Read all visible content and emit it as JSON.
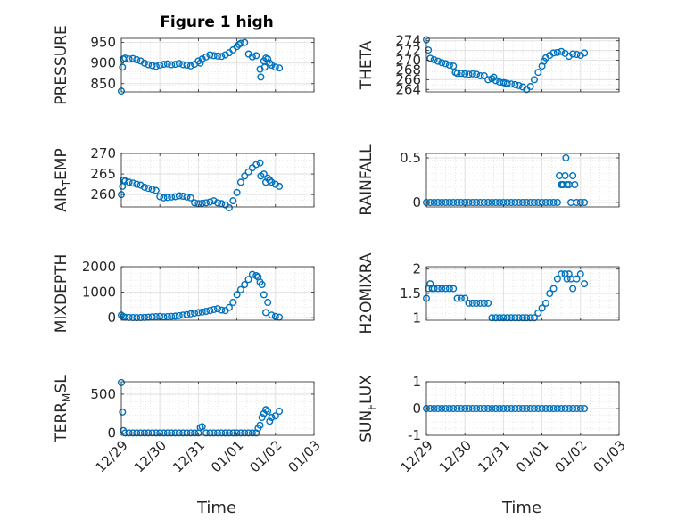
{
  "figure": {
    "title": "Figure 1 high",
    "marker_color": "#0072BD"
  },
  "chart_data": [
    {
      "type": "scatter",
      "title": "Figure 1 high",
      "ylabel": "PRESSURE",
      "xlabel": "",
      "ylim": [
        830,
        960
      ],
      "yticks": [
        850,
        900,
        950
      ],
      "ytick_labels": [
        "850",
        "900",
        "950"
      ],
      "xlim": [
        0,
        5
      ],
      "xticks": [
        0,
        1,
        2,
        3,
        4,
        5
      ],
      "xtick_labels": [],
      "grid": true,
      "marker": "open-circle",
      "series": [
        {
          "x": [
            0,
            0.03,
            0.05,
            0.1,
            0.2,
            0.3,
            0.4,
            0.5,
            0.6,
            0.7,
            0.8,
            0.9,
            1.0,
            1.1,
            1.2,
            1.3,
            1.4,
            1.5,
            1.6,
            1.7,
            1.8,
            1.9,
            2.0,
            2.05,
            2.1,
            2.2,
            2.3,
            2.4,
            2.5,
            2.6,
            2.7,
            2.8,
            2.9,
            3.0,
            3.05,
            3.1,
            3.2,
            3.3,
            3.4,
            3.5,
            3.6,
            3.62,
            3.7,
            3.72,
            3.75,
            3.8,
            3.85,
            3.9,
            4.0,
            4.1
          ],
          "y": [
            832,
            890,
            910,
            912,
            910,
            911,
            908,
            905,
            900,
            896,
            894,
            892,
            895,
            897,
            898,
            896,
            897,
            899,
            896,
            895,
            893,
            897,
            905,
            900,
            910,
            915,
            920,
            918,
            917,
            916,
            920,
            925,
            932,
            940,
            945,
            948,
            950,
            922,
            915,
            918,
            885,
            866,
            905,
            890,
            912,
            910,
            900,
            895,
            890,
            888
          ]
        }
      ]
    },
    {
      "type": "scatter",
      "ylabel": "THETA",
      "xlabel": "",
      "ylim": [
        263.5,
        274.5
      ],
      "yticks": [
        264,
        266,
        268,
        270,
        272,
        274
      ],
      "ytick_labels": [
        "264",
        "266",
        "268",
        "270",
        "272",
        "274"
      ],
      "xlim": [
        0,
        5
      ],
      "xticks": [
        0,
        1,
        2,
        3,
        4,
        5
      ],
      "xtick_labels": [],
      "grid": true,
      "marker": "open-circle",
      "series": [
        {
          "x": [
            0,
            0.05,
            0.1,
            0.2,
            0.3,
            0.4,
            0.5,
            0.6,
            0.7,
            0.75,
            0.8,
            0.9,
            1.0,
            1.1,
            1.2,
            1.3,
            1.4,
            1.5,
            1.6,
            1.7,
            1.75,
            1.8,
            1.9,
            2.0,
            2.05,
            2.1,
            2.2,
            2.3,
            2.4,
            2.5,
            2.6,
            2.7,
            2.8,
            2.9,
            3.0,
            3.05,
            3.1,
            3.2,
            3.3,
            3.4,
            3.5,
            3.6,
            3.7,
            3.8,
            3.9,
            4.0,
            4.1
          ],
          "y": [
            274.2,
            272.1,
            270.4,
            270.1,
            269.8,
            269.5,
            269.3,
            269.0,
            268.8,
            267.5,
            267.3,
            267.3,
            267.2,
            267.1,
            267.2,
            267.1,
            266.8,
            266.8,
            266.0,
            266.2,
            266.5,
            265.8,
            265.5,
            265.4,
            265.3,
            265.2,
            265.1,
            265.0,
            264.8,
            264.5,
            264.0,
            264.6,
            266.0,
            267.5,
            268.8,
            269.8,
            270.5,
            271.0,
            271.5,
            271.6,
            271.8,
            271.4,
            270.8,
            271.3,
            271.2,
            271.0,
            271.5
          ]
        }
      ]
    },
    {
      "type": "scatter",
      "ylabel": "AIR_TEMP",
      "xlabel": "",
      "ylim": [
        257,
        270
      ],
      "yticks": [
        260,
        265,
        270
      ],
      "ytick_labels": [
        "260",
        "265",
        "270"
      ],
      "xlim": [
        0,
        5
      ],
      "xticks": [
        0,
        1,
        2,
        3,
        4,
        5
      ],
      "xtick_labels": [],
      "grid": true,
      "marker": "open-circle",
      "series": [
        {
          "x": [
            0,
            0.03,
            0.05,
            0.1,
            0.2,
            0.3,
            0.4,
            0.5,
            0.6,
            0.7,
            0.8,
            0.9,
            1.0,
            1.1,
            1.2,
            1.3,
            1.4,
            1.5,
            1.6,
            1.7,
            1.8,
            1.9,
            2.0,
            2.1,
            2.2,
            2.3,
            2.4,
            2.5,
            2.6,
            2.7,
            2.8,
            2.9,
            3.0,
            3.1,
            3.2,
            3.3,
            3.4,
            3.5,
            3.6,
            3.62,
            3.7,
            3.75,
            3.8,
            3.85,
            3.9,
            4.0,
            4.1
          ],
          "y": [
            260,
            262,
            263.5,
            263.3,
            263,
            262.8,
            262.5,
            262.3,
            261.8,
            261.5,
            261.3,
            261.0,
            259.5,
            259.2,
            259.3,
            259.4,
            259.5,
            259.7,
            259.6,
            259.4,
            259.2,
            258.0,
            257.8,
            257.9,
            258.0,
            258.2,
            258.5,
            258.0,
            257.8,
            257.5,
            256.8,
            258.5,
            260.5,
            263.0,
            264.5,
            265.5,
            266.5,
            267.3,
            267.7,
            264.5,
            265.0,
            263.0,
            264.0,
            263.5,
            263.0,
            262.5,
            262.0
          ]
        }
      ]
    },
    {
      "type": "scatter",
      "ylabel": "RAINFALL",
      "xlabel": "",
      "ylim": [
        -0.05,
        0.55
      ],
      "yticks": [
        0,
        0.5
      ],
      "ytick_labels": [
        "0",
        "0.5"
      ],
      "xlim": [
        0,
        5
      ],
      "xticks": [
        0,
        1,
        2,
        3,
        4,
        5
      ],
      "xtick_labels": [],
      "grid": true,
      "marker": "open-circle",
      "series": [
        {
          "x": [
            0,
            0.1,
            0.2,
            0.3,
            0.4,
            0.5,
            0.6,
            0.7,
            0.8,
            0.9,
            1.0,
            1.1,
            1.2,
            1.3,
            1.4,
            1.5,
            1.6,
            1.7,
            1.8,
            1.9,
            2.0,
            2.1,
            2.2,
            2.3,
            2.4,
            2.5,
            2.6,
            2.7,
            2.8,
            2.9,
            3.0,
            3.1,
            3.2,
            3.3,
            3.4,
            3.45,
            3.5,
            3.52,
            3.55,
            3.6,
            3.62,
            3.65,
            3.7,
            3.75,
            3.8,
            3.85,
            3.9,
            4.0,
            4.1
          ],
          "y": [
            0,
            0,
            0,
            0,
            0,
            0,
            0,
            0,
            0,
            0,
            0,
            0,
            0,
            0,
            0,
            0,
            0,
            0,
            0,
            0,
            0,
            0,
            0,
            0,
            0,
            0,
            0,
            0,
            0,
            0,
            0,
            0,
            0,
            0,
            0,
            0.3,
            0.2,
            0.2,
            0.2,
            0.3,
            0.5,
            0.2,
            0.2,
            0,
            0.3,
            0.2,
            0,
            0,
            0
          ]
        }
      ]
    },
    {
      "type": "scatter",
      "ylabel": "MIXDEPTH",
      "xlabel": "",
      "ylim": [
        -100,
        2000
      ],
      "yticks": [
        0,
        1000,
        2000
      ],
      "ytick_labels": [
        "0",
        "1000",
        "2000"
      ],
      "xlim": [
        0,
        5
      ],
      "xticks": [
        0,
        1,
        2,
        3,
        4,
        5
      ],
      "xtick_labels": [],
      "grid": true,
      "marker": "open-circle",
      "series": [
        {
          "x": [
            0,
            0.05,
            0.1,
            0.2,
            0.3,
            0.4,
            0.5,
            0.6,
            0.7,
            0.8,
            0.9,
            1.0,
            1.1,
            1.2,
            1.3,
            1.4,
            1.5,
            1.6,
            1.7,
            1.8,
            1.9,
            2.0,
            2.1,
            2.2,
            2.3,
            2.4,
            2.5,
            2.6,
            2.7,
            2.8,
            2.9,
            3.0,
            3.1,
            3.2,
            3.3,
            3.4,
            3.5,
            3.55,
            3.6,
            3.65,
            3.7,
            3.75,
            3.8,
            3.9,
            4.0,
            4.1
          ],
          "y": [
            100,
            40,
            20,
            10,
            5,
            0,
            5,
            10,
            20,
            30,
            40,
            50,
            30,
            40,
            50,
            60,
            80,
            100,
            120,
            150,
            180,
            200,
            220,
            250,
            280,
            320,
            350,
            300,
            280,
            400,
            600,
            900,
            1100,
            1300,
            1500,
            1700,
            1650,
            1600,
            1400,
            1300,
            900,
            200,
            600,
            100,
            50,
            20
          ]
        }
      ]
    },
    {
      "type": "scatter",
      "ylabel": "H2OMIXRA",
      "xlabel": "",
      "ylim": [
        0.95,
        2.05
      ],
      "yticks": [
        1,
        1.5,
        2
      ],
      "ytick_labels": [
        "1",
        "1.5",
        "2"
      ],
      "xlim": [
        0,
        5
      ],
      "xticks": [
        0,
        1,
        2,
        3,
        4,
        5
      ],
      "xtick_labels": [],
      "grid": true,
      "marker": "open-circle",
      "series": [
        {
          "x": [
            0,
            0.05,
            0.1,
            0.15,
            0.2,
            0.3,
            0.4,
            0.5,
            0.6,
            0.7,
            0.8,
            0.9,
            1.0,
            1.1,
            1.2,
            1.3,
            1.4,
            1.5,
            1.6,
            1.7,
            1.8,
            1.9,
            2.0,
            2.1,
            2.2,
            2.3,
            2.4,
            2.5,
            2.6,
            2.7,
            2.8,
            2.9,
            3.0,
            3.1,
            3.2,
            3.3,
            3.4,
            3.5,
            3.6,
            3.65,
            3.7,
            3.75,
            3.8,
            3.9,
            4.0,
            4.1
          ],
          "y": [
            1.4,
            1.6,
            1.7,
            1.6,
            1.6,
            1.6,
            1.6,
            1.6,
            1.6,
            1.6,
            1.4,
            1.4,
            1.4,
            1.3,
            1.3,
            1.3,
            1.3,
            1.3,
            1.3,
            1.0,
            1.0,
            1.0,
            1.0,
            1.0,
            1.0,
            1.0,
            1.0,
            1.0,
            1.0,
            1.0,
            1.0,
            1.1,
            1.2,
            1.3,
            1.5,
            1.6,
            1.8,
            1.9,
            1.9,
            1.8,
            1.9,
            1.8,
            1.6,
            1.8,
            1.9,
            1.7
          ]
        }
      ]
    },
    {
      "type": "scatter",
      "ylabel": "TERR_MSL",
      "xlabel": "",
      "ylim": [
        -30,
        660
      ],
      "yticks": [
        0,
        500
      ],
      "ytick_labels": [
        "0",
        "500"
      ],
      "xlim": [
        0,
        5
      ],
      "xticks": [
        0,
        1,
        2,
        3,
        4,
        5
      ],
      "xtick_labels": [
        "12/29",
        "12/30",
        "12/31",
        "01/01",
        "01/02",
        "01/03"
      ],
      "grid": true,
      "marker": "open-circle",
      "series": [
        {
          "x": [
            0,
            0.03,
            0.05,
            0.1,
            0.2,
            0.3,
            0.4,
            0.5,
            0.6,
            0.7,
            0.8,
            0.9,
            1.0,
            1.1,
            1.2,
            1.3,
            1.4,
            1.5,
            1.6,
            1.7,
            1.8,
            1.9,
            2.0,
            2.05,
            2.1,
            2.2,
            2.3,
            2.4,
            2.5,
            2.6,
            2.7,
            2.8,
            2.9,
            3.0,
            3.1,
            3.2,
            3.3,
            3.4,
            3.5,
            3.55,
            3.6,
            3.65,
            3.7,
            3.75,
            3.8,
            3.85,
            3.9,
            4.0,
            4.1
          ],
          "y": [
            650,
            270,
            30,
            0,
            0,
            0,
            0,
            0,
            0,
            0,
            0,
            0,
            0,
            0,
            0,
            0,
            0,
            0,
            0,
            0,
            0,
            0,
            0,
            70,
            80,
            0,
            0,
            0,
            0,
            0,
            0,
            0,
            0,
            0,
            0,
            0,
            0,
            0,
            0,
            60,
            100,
            200,
            250,
            300,
            280,
            150,
            200,
            220,
            280
          ]
        }
      ]
    },
    {
      "type": "scatter",
      "ylabel": "SUN_FLUX",
      "xlabel": "",
      "ylim": [
        -1,
        1
      ],
      "yticks": [
        -1,
        0,
        1
      ],
      "ytick_labels": [
        "-1",
        "0",
        "1"
      ],
      "xlim": [
        0,
        5
      ],
      "xticks": [
        0,
        1,
        2,
        3,
        4,
        5
      ],
      "xtick_labels": [
        "12/29",
        "12/30",
        "12/31",
        "01/01",
        "01/02",
        "01/03"
      ],
      "grid": true,
      "marker": "open-circle",
      "series": [
        {
          "x": [
            0,
            0.1,
            0.2,
            0.3,
            0.4,
            0.5,
            0.6,
            0.7,
            0.8,
            0.9,
            1.0,
            1.1,
            1.2,
            1.3,
            1.4,
            1.5,
            1.6,
            1.7,
            1.8,
            1.9,
            2.0,
            2.1,
            2.2,
            2.3,
            2.4,
            2.5,
            2.6,
            2.7,
            2.8,
            2.9,
            3.0,
            3.1,
            3.2,
            3.3,
            3.4,
            3.5,
            3.6,
            3.7,
            3.8,
            3.9,
            4.0,
            4.1
          ],
          "y": [
            0,
            0,
            0,
            0,
            0,
            0,
            0,
            0,
            0,
            0,
            0,
            0,
            0,
            0,
            0,
            0,
            0,
            0,
            0,
            0,
            0,
            0,
            0,
            0,
            0,
            0,
            0,
            0,
            0,
            0,
            0,
            0,
            0,
            0,
            0,
            0,
            0,
            0,
            0,
            0,
            0,
            0
          ]
        }
      ]
    }
  ],
  "xlabels": [
    "Time",
    "Time"
  ]
}
